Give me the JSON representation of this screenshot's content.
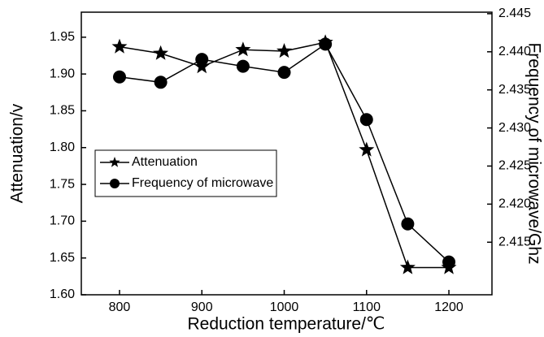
{
  "chart_data": {
    "type": "line",
    "xlabel": "Reduction  temperature/℃",
    "ylabel": "Attenuation/v",
    "y2label": "Frequency of microwave/Ghz",
    "x": [
      800,
      850,
      900,
      950,
      1000,
      1050,
      1100,
      1150,
      1200
    ],
    "xlim": [
      753.6,
      1252.3
    ],
    "xticks": [
      800,
      900,
      1000,
      1100,
      1200
    ],
    "ylim": [
      1.6,
      1.984
    ],
    "yticks": [
      {
        "value": 1.6,
        "label": "1.60"
      },
      1.65,
      {
        "value": 1.7,
        "label": "1.70"
      },
      1.75,
      {
        "value": 1.8,
        "label": "1.80"
      },
      1.85,
      {
        "value": 1.9,
        "label": "1.90"
      },
      1.95
    ],
    "y2lim": [
      2.4081,
      2.4452
    ],
    "y2ticks": [
      {
        "value": 2.415,
        "label": "2.415"
      },
      {
        "value": 2.42,
        "label": "2.420"
      },
      2.425,
      {
        "value": 2.43,
        "label": "2.430"
      },
      2.435,
      {
        "value": 2.44,
        "label": "2.440"
      },
      2.445
    ],
    "legend": "left",
    "series": [
      {
        "name": "Attenuation",
        "color": "#000000",
        "marker": "star",
        "values": [
          1.937,
          1.928,
          1.91,
          1.933,
          1.931,
          1.943,
          1.797,
          1.637,
          1.637
        ]
      },
      {
        "name": "Frequency of microwave",
        "color": "#000000",
        "marker": "circle",
        "axis": "y2",
        "values": [
          2.4367,
          2.436,
          2.439,
          2.4381,
          2.4373,
          2.441,
          2.4311,
          2.4174,
          2.4124
        ]
      }
    ]
  }
}
